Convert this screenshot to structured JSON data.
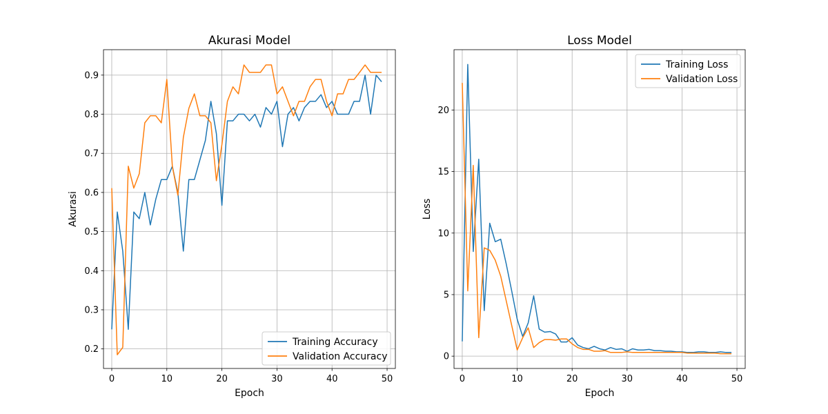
{
  "chart_data": [
    {
      "type": "line",
      "title": "Akurasi Model",
      "xlabel": "Epoch",
      "ylabel": "Akurasi",
      "xlim": [
        -1.5,
        51.5
      ],
      "ylim": [
        0.15,
        0.965
      ],
      "xticks": [
        0,
        10,
        20,
        30,
        40,
        50
      ],
      "yticks": [
        0.2,
        0.3,
        0.4,
        0.5,
        0.6,
        0.7,
        0.8,
        0.9
      ],
      "grid": true,
      "legend_position": "lower-right",
      "series": [
        {
          "name": "Training Accuracy",
          "color": "#1f77b4",
          "x": [
            0,
            1,
            2,
            3,
            4,
            5,
            6,
            7,
            8,
            9,
            10,
            11,
            12,
            13,
            14,
            15,
            16,
            17,
            18,
            19,
            20,
            21,
            22,
            23,
            24,
            25,
            26,
            27,
            28,
            29,
            30,
            31,
            32,
            33,
            34,
            35,
            36,
            37,
            38,
            39,
            40,
            41,
            42,
            43,
            44,
            45,
            46,
            47,
            48,
            49
          ],
          "values": [
            0.25,
            0.55,
            0.45,
            0.25,
            0.55,
            0.533,
            0.6,
            0.517,
            0.583,
            0.633,
            0.633,
            0.667,
            0.6,
            0.45,
            0.633,
            0.633,
            0.683,
            0.733,
            0.833,
            0.75,
            0.567,
            0.783,
            0.783,
            0.8,
            0.8,
            0.783,
            0.8,
            0.767,
            0.817,
            0.8,
            0.833,
            0.717,
            0.8,
            0.817,
            0.783,
            0.817,
            0.833,
            0.833,
            0.85,
            0.817,
            0.833,
            0.8,
            0.8,
            0.8,
            0.833,
            0.833,
            0.9,
            0.8,
            0.9,
            0.883
          ]
        },
        {
          "name": "Validation Accuracy",
          "color": "#ff7f0e",
          "x": [
            0,
            1,
            2,
            3,
            4,
            5,
            6,
            7,
            8,
            9,
            10,
            11,
            12,
            13,
            14,
            15,
            16,
            17,
            18,
            19,
            20,
            21,
            22,
            23,
            24,
            25,
            26,
            27,
            28,
            29,
            30,
            31,
            32,
            33,
            34,
            35,
            36,
            37,
            38,
            39,
            40,
            41,
            42,
            43,
            44,
            45,
            46,
            47,
            48,
            49
          ],
          "values": [
            0.611,
            0.185,
            0.204,
            0.667,
            0.611,
            0.648,
            0.778,
            0.796,
            0.796,
            0.778,
            0.889,
            0.667,
            0.593,
            0.741,
            0.815,
            0.852,
            0.796,
            0.796,
            0.778,
            0.63,
            0.722,
            0.833,
            0.87,
            0.852,
            0.926,
            0.907,
            0.907,
            0.907,
            0.926,
            0.926,
            0.852,
            0.87,
            0.833,
            0.796,
            0.833,
            0.833,
            0.87,
            0.889,
            0.889,
            0.833,
            0.796,
            0.852,
            0.852,
            0.889,
            0.889,
            0.907,
            0.926,
            0.907,
            0.907,
            0.907
          ]
        }
      ]
    },
    {
      "type": "line",
      "title": "Loss Model",
      "xlabel": "Epoch",
      "ylabel": "Loss",
      "xlim": [
        -1.5,
        51.5
      ],
      "ylim": [
        -1.0,
        24.9
      ],
      "xticks": [
        0,
        10,
        20,
        30,
        40,
        50
      ],
      "yticks": [
        0,
        5,
        10,
        15,
        20
      ],
      "grid": true,
      "legend_position": "upper-right",
      "series": [
        {
          "name": "Training Loss",
          "color": "#1f77b4",
          "x": [
            0,
            1,
            2,
            3,
            4,
            5,
            6,
            7,
            8,
            9,
            10,
            11,
            12,
            13,
            14,
            15,
            16,
            17,
            18,
            19,
            20,
            21,
            22,
            23,
            24,
            25,
            26,
            27,
            28,
            29,
            30,
            31,
            32,
            33,
            34,
            35,
            36,
            37,
            38,
            39,
            40,
            41,
            42,
            43,
            44,
            45,
            46,
            47,
            48,
            49
          ],
          "values": [
            1.2,
            23.7,
            8.5,
            16.0,
            3.7,
            10.8,
            9.3,
            9.5,
            7.5,
            5.3,
            3.0,
            1.6,
            2.7,
            4.9,
            2.2,
            1.95,
            2.0,
            1.8,
            1.15,
            1.15,
            1.5,
            0.9,
            0.7,
            0.6,
            0.8,
            0.6,
            0.5,
            0.7,
            0.55,
            0.6,
            0.4,
            0.6,
            0.5,
            0.5,
            0.55,
            0.45,
            0.45,
            0.4,
            0.4,
            0.35,
            0.35,
            0.3,
            0.3,
            0.35,
            0.35,
            0.3,
            0.3,
            0.35,
            0.3,
            0.3
          ]
        },
        {
          "name": "Validation Loss",
          "color": "#ff7f0e",
          "x": [
            0,
            1,
            2,
            3,
            4,
            5,
            6,
            7,
            8,
            9,
            10,
            11,
            12,
            13,
            14,
            15,
            16,
            17,
            18,
            19,
            20,
            21,
            22,
            23,
            24,
            25,
            26,
            27,
            28,
            29,
            30,
            31,
            32,
            33,
            34,
            35,
            36,
            37,
            38,
            39,
            40,
            41,
            42,
            43,
            44,
            45,
            46,
            47,
            48,
            49
          ],
          "values": [
            22.2,
            5.3,
            15.5,
            1.5,
            8.8,
            8.6,
            7.8,
            6.5,
            4.5,
            2.5,
            0.5,
            1.5,
            2.3,
            0.7,
            1.1,
            1.35,
            1.35,
            1.3,
            1.4,
            1.4,
            1.0,
            0.7,
            0.55,
            0.55,
            0.4,
            0.4,
            0.45,
            0.3,
            0.3,
            0.3,
            0.35,
            0.3,
            0.3,
            0.3,
            0.3,
            0.3,
            0.3,
            0.3,
            0.3,
            0.3,
            0.3,
            0.25,
            0.25,
            0.25,
            0.25,
            0.25,
            0.25,
            0.2,
            0.2,
            0.2
          ]
        }
      ]
    }
  ]
}
